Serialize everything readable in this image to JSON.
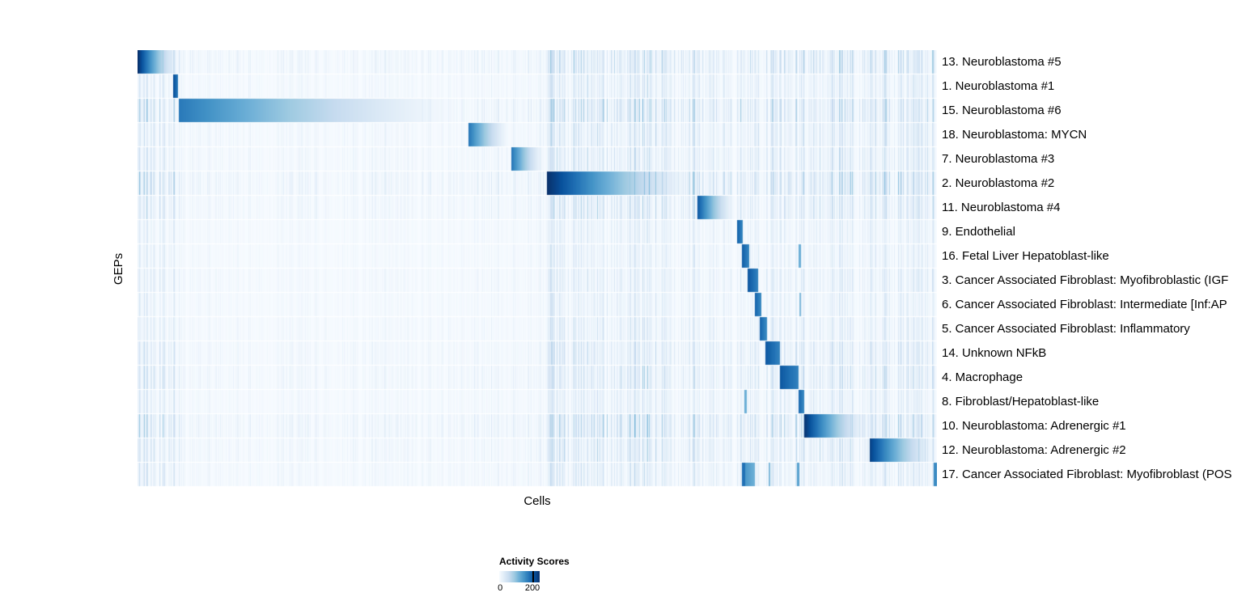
{
  "chart_data": {
    "type": "heatmap",
    "title": "",
    "xlabel": "Cells",
    "ylabel": "GEPs",
    "legend": {
      "title": "Activity Scores",
      "min": "0",
      "max": "200"
    },
    "colormap": [
      "#f7fbff",
      "#deebf7",
      "#c6dbef",
      "#9ecae1",
      "#6baed6",
      "#4292c6",
      "#2171b5",
      "#08519c",
      "#08306b"
    ],
    "value_range": [
      0,
      200
    ],
    "noise_regions": [
      {
        "start": 0.0,
        "end": 0.052,
        "amp": 0.45
      },
      {
        "start": 0.052,
        "end": 0.42,
        "amp": 0.1
      },
      {
        "start": 0.42,
        "end": 0.512,
        "amp": 0.14
      },
      {
        "start": 0.512,
        "end": 0.7,
        "amp": 0.38
      },
      {
        "start": 0.7,
        "end": 0.75,
        "amp": 0.25
      },
      {
        "start": 0.75,
        "end": 0.84,
        "amp": 0.3
      },
      {
        "start": 0.84,
        "end": 1.0,
        "amp": 0.35
      }
    ],
    "rows": [
      {
        "label": "13. Neuroblastoma #5",
        "block": {
          "start": 0.0,
          "end": 0.052,
          "peak": 1.0,
          "fade": true
        },
        "noise": 1.2
      },
      {
        "label": "1. Neuroblastoma #1",
        "block": {
          "start": 0.044,
          "end": 0.05,
          "peak": 0.9,
          "fade": false
        },
        "noise": 0.8
      },
      {
        "label": "15. Neuroblastoma #6",
        "block": {
          "start": 0.051,
          "end": 0.41,
          "peak": 0.72,
          "fade": true
        },
        "noise": 1.3
      },
      {
        "label": "18. Neuroblastoma: MYCN",
        "block": {
          "start": 0.413,
          "end": 0.466,
          "peak": 0.75,
          "fade": true
        },
        "noise": 0.9
      },
      {
        "label": "7. Neuroblastoma #3",
        "block": {
          "start": 0.467,
          "end": 0.509,
          "peak": 0.75,
          "fade": true
        },
        "noise": 0.9
      },
      {
        "label": "2. Neuroblastoma #2",
        "block": {
          "start": 0.512,
          "end": 0.7,
          "peak": 1.0,
          "fade": true
        },
        "noise": 1.4
      },
      {
        "label": "11. Neuroblastoma #4",
        "block": {
          "start": 0.7,
          "end": 0.748,
          "peak": 0.85,
          "fade": true
        },
        "noise": 1.0
      },
      {
        "label": "9. Endothelial",
        "block": {
          "start": 0.749,
          "end": 0.757,
          "peak": 0.82,
          "fade": false
        },
        "noise": 0.6
      },
      {
        "label": "16. Fetal Liver Hepatoblast-like",
        "block": {
          "start": 0.756,
          "end": 0.765,
          "peak": 0.82,
          "fade": false
        },
        "noise": 0.6,
        "marks": [
          {
            "pos": 0.828,
            "w": 0.003,
            "v": 0.5
          }
        ]
      },
      {
        "label": "3. Cancer Associated Fibroblast: Myofibroblastic (IGF",
        "block": {
          "start": 0.763,
          "end": 0.776,
          "peak": 0.85,
          "fade": false
        },
        "noise": 0.7
      },
      {
        "label": "6. Cancer Associated Fibroblast: Intermediate [Inf:AP",
        "block": {
          "start": 0.772,
          "end": 0.78,
          "peak": 0.8,
          "fade": false
        },
        "noise": 0.6,
        "marks": [
          {
            "pos": 0.828,
            "w": 0.002,
            "v": 0.45
          }
        ]
      },
      {
        "label": "5. Cancer Associated Fibroblast: Inflammatory",
        "block": {
          "start": 0.778,
          "end": 0.787,
          "peak": 0.8,
          "fade": false
        },
        "noise": 0.7
      },
      {
        "label": "14. Unknown NFkB",
        "block": {
          "start": 0.785,
          "end": 0.803,
          "peak": 0.85,
          "fade": false
        },
        "noise": 0.9
      },
      {
        "label": "4. Macrophage",
        "block": {
          "start": 0.803,
          "end": 0.826,
          "peak": 0.85,
          "fade": false
        },
        "noise": 1.0
      },
      {
        "label": "8. Fibroblast/Hepatoblast-like",
        "block": {
          "start": 0.826,
          "end": 0.834,
          "peak": 0.8,
          "fade": false
        },
        "noise": 0.7,
        "marks": [
          {
            "pos": 0.76,
            "w": 0.003,
            "v": 0.5
          }
        ]
      },
      {
        "label": "10. Neuroblastoma: Adrenergic #1",
        "block": {
          "start": 0.833,
          "end": 0.915,
          "peak": 1.0,
          "fade": true
        },
        "noise": 1.3
      },
      {
        "label": "12. Neuroblastoma: Adrenergic #2",
        "block": {
          "start": 0.915,
          "end": 1.0,
          "peak": 0.95,
          "fade": true
        },
        "noise": 1.0
      },
      {
        "label": "17. Cancer Associated Fibroblast: Myofibroblast (POS",
        "block": {
          "start": 0.76,
          "end": 0.772,
          "peak": 0.6,
          "fade": false
        },
        "noise": 0.8,
        "marks": [
          {
            "pos": 0.758,
            "w": 0.004,
            "v": 0.75
          },
          {
            "pos": 0.79,
            "w": 0.002,
            "v": 0.45
          },
          {
            "pos": 0.826,
            "w": 0.003,
            "v": 0.55
          },
          {
            "pos": 0.997,
            "w": 0.004,
            "v": 0.65
          }
        ]
      }
    ]
  }
}
